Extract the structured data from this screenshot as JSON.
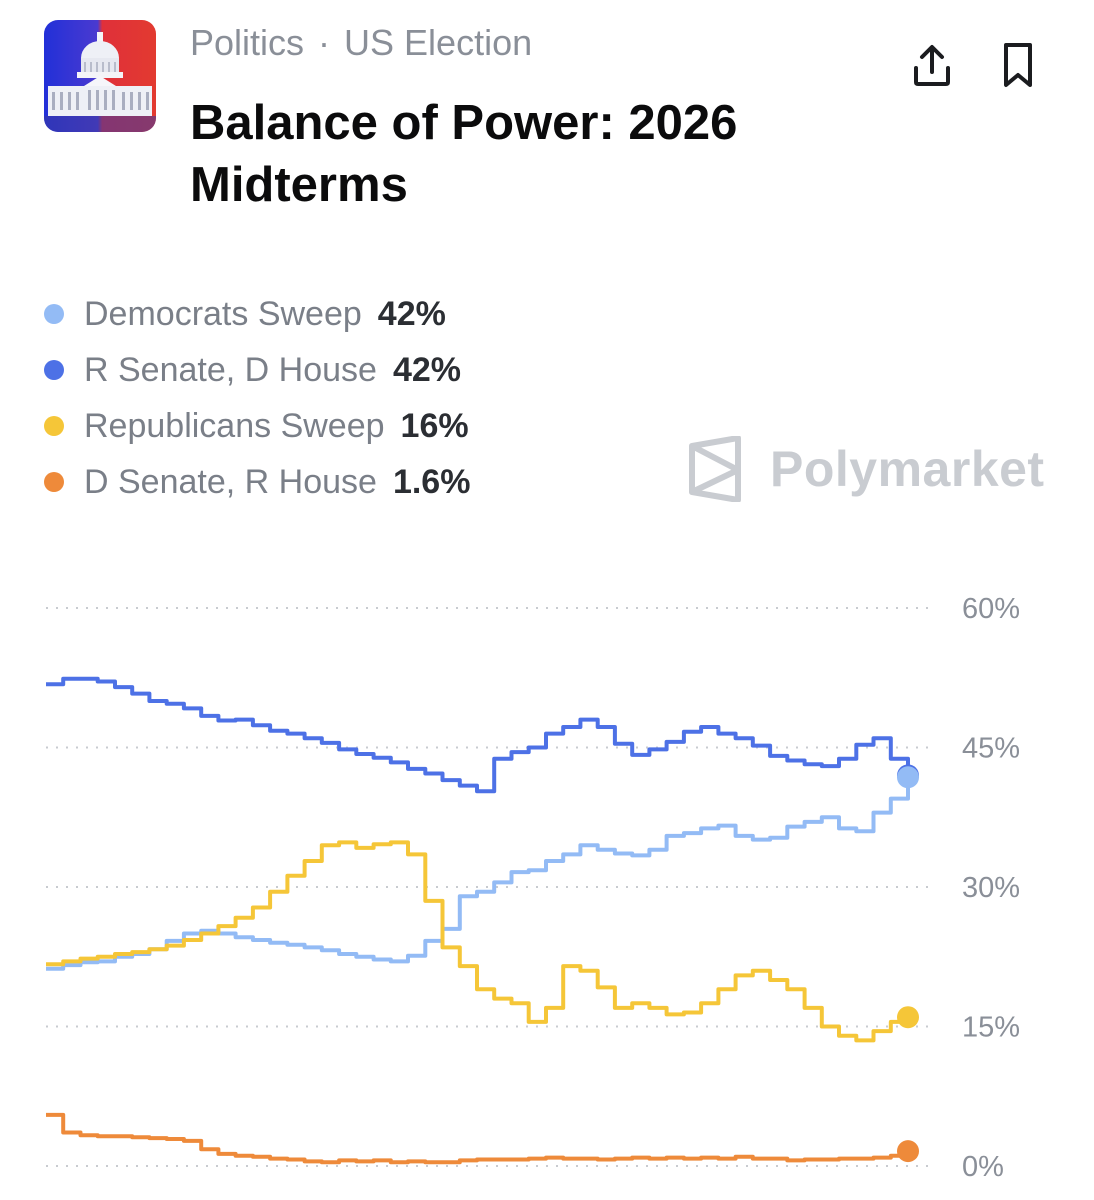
{
  "header": {
    "category": "Politics",
    "separator": "·",
    "subcategory": "US Election",
    "title": "Balance of Power: 2026 Midterms",
    "share_icon": "share-icon",
    "bookmark_icon": "bookmark-icon",
    "thumbnail_icon": "capitol-icon"
  },
  "legend": {
    "items": [
      {
        "name": "Democrats Sweep",
        "value": "42%",
        "color": "#93bbf5"
      },
      {
        "name": "R Senate, D House",
        "value": "42%",
        "color": "#4d71e6"
      },
      {
        "name": "Republicans Sweep",
        "value": "16%",
        "color": "#f5c638"
      },
      {
        "name": "D Senate, R House",
        "value": "1.6%",
        "color": "#ee8a3a"
      }
    ]
  },
  "watermark": {
    "text": "Polymarket",
    "icon": "polymarket-logo-icon"
  },
  "chart_data": {
    "type": "line",
    "title": "",
    "xlabel": "",
    "ylabel": "",
    "x": [
      0,
      2,
      4,
      6,
      8,
      10,
      12,
      14,
      16,
      18,
      20,
      22,
      24,
      26,
      28,
      30,
      32,
      34,
      36,
      38,
      40,
      42,
      44,
      46,
      48,
      50,
      52,
      54,
      56,
      58,
      60,
      62,
      64,
      66,
      68,
      70,
      72,
      74,
      76,
      78,
      80,
      82,
      84,
      86,
      88,
      90,
      92,
      94,
      96,
      98,
      100
    ],
    "xlim": [
      0,
      100
    ],
    "ylim": [
      0,
      60
    ],
    "y_ticks": [
      0,
      15,
      30,
      45,
      60
    ],
    "y_tick_labels": [
      "0%",
      "15%",
      "30%",
      "45%",
      "60%"
    ],
    "grid": true,
    "series": [
      {
        "name": "R Senate, D House",
        "color": "#4d71e6",
        "values": [
          51.8,
          52.4,
          52.4,
          52.1,
          51.5,
          50.8,
          50.0,
          49.7,
          49.2,
          48.4,
          47.9,
          48.0,
          47.4,
          46.8,
          46.5,
          46.0,
          45.5,
          44.8,
          44.3,
          43.9,
          43.4,
          42.7,
          42.2,
          41.5,
          40.9,
          40.3,
          43.8,
          44.5,
          45.0,
          46.5,
          47.2,
          48.0,
          47.2,
          45.4,
          44.2,
          44.8,
          45.6,
          46.7,
          47.2,
          46.5,
          46.0,
          45.2,
          44.1,
          43.6,
          43.2,
          43.0,
          43.8,
          45.3,
          46.0,
          43.8,
          42.0
        ]
      },
      {
        "name": "Democrats Sweep",
        "color": "#93bbf5",
        "values": [
          21.2,
          21.6,
          21.9,
          22.0,
          22.5,
          22.8,
          23.3,
          24.2,
          25.0,
          25.3,
          25.0,
          24.6,
          24.3,
          24.0,
          23.8,
          23.5,
          23.2,
          22.8,
          22.5,
          22.2,
          22.0,
          22.6,
          24.2,
          25.5,
          29.0,
          29.5,
          30.5,
          31.6,
          31.8,
          32.8,
          33.5,
          34.5,
          34.0,
          33.6,
          33.4,
          34.0,
          35.5,
          35.8,
          36.3,
          36.6,
          35.5,
          35.1,
          35.3,
          36.5,
          37.0,
          37.5,
          36.3,
          36.0,
          38.0,
          39.5,
          41.8
        ]
      },
      {
        "name": "Republicans Sweep",
        "color": "#f5c638",
        "values": [
          21.7,
          22.0,
          22.3,
          22.5,
          22.8,
          23.0,
          23.3,
          23.7,
          24.3,
          25.0,
          25.8,
          26.7,
          27.8,
          29.5,
          31.2,
          32.8,
          34.5,
          34.8,
          34.2,
          34.6,
          34.8,
          33.5,
          28.5,
          23.5,
          21.5,
          19.0,
          18.0,
          17.5,
          15.5,
          17.0,
          21.5,
          21.0,
          19.2,
          17.0,
          17.5,
          17.0,
          16.3,
          16.5,
          17.5,
          19.0,
          20.5,
          21.0,
          20.0,
          19.0,
          17.0,
          15.0,
          14.0,
          13.5,
          14.5,
          15.5,
          16.0
        ]
      },
      {
        "name": "D Senate, R House",
        "color": "#ee8a3a",
        "values": [
          5.5,
          3.6,
          3.3,
          3.2,
          3.2,
          3.1,
          3.0,
          2.9,
          2.7,
          1.8,
          1.3,
          1.1,
          1.0,
          0.8,
          0.7,
          0.5,
          0.4,
          0.6,
          0.5,
          0.6,
          0.4,
          0.5,
          0.4,
          0.4,
          0.6,
          0.7,
          0.7,
          0.7,
          0.8,
          0.9,
          0.8,
          0.8,
          0.7,
          0.8,
          0.9,
          0.8,
          0.9,
          0.8,
          0.9,
          0.8,
          1.0,
          0.8,
          0.8,
          0.6,
          0.7,
          0.7,
          0.8,
          0.8,
          0.9,
          1.1,
          1.6
        ]
      }
    ]
  }
}
